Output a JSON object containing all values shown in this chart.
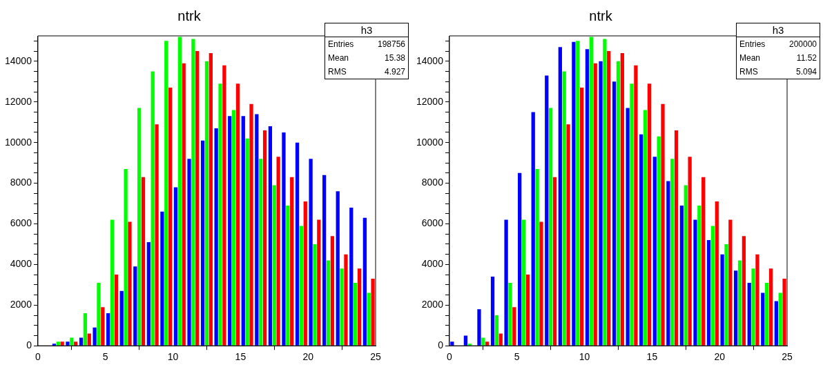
{
  "chart_data": [
    {
      "type": "histogram",
      "title": "ntrk",
      "bins": [
        0,
        1,
        2,
        3,
        4,
        5,
        6,
        7,
        8,
        9,
        10,
        11,
        12,
        13,
        14,
        15,
        16,
        17,
        18,
        19,
        20,
        21,
        22,
        23,
        24,
        25
      ],
      "series": [
        {
          "color": "#ff0000",
          "values": [
            0,
            200,
            200,
            600,
            1900,
            3500,
            6100,
            8300,
            10900,
            12700,
            13900,
            14500,
            14400,
            13800,
            12900,
            11900,
            10600,
            9300,
            8300,
            7100,
            6200,
            5400,
            4500,
            3800,
            3300
          ]
        },
        {
          "color": "#00ff00",
          "values": [
            0,
            200,
            400,
            1600,
            3100,
            6200,
            8700,
            11700,
            13500,
            15000,
            15200,
            15100,
            14000,
            12900,
            11600,
            10200,
            9200,
            7900,
            6900,
            5900,
            5000,
            4200,
            3800,
            3100,
            2600
          ]
        },
        {
          "color": "#0000ff",
          "values": [
            0,
            100,
            200,
            400,
            900,
            1600,
            2700,
            3900,
            5100,
            6600,
            7800,
            9200,
            10100,
            10700,
            11300,
            11300,
            11400,
            10800,
            10500,
            10000,
            9200,
            8400,
            7600,
            6800,
            6300
          ]
        }
      ],
      "xlim": [
        0,
        25
      ],
      "xticks": [
        0,
        5,
        10,
        15,
        20,
        25
      ],
      "ylim": [
        0,
        15250
      ],
      "yticks": [
        0,
        {
          "value": 500,
          "label": null
        },
        {
          "value": 1000,
          "label": null
        },
        {
          "value": 1500,
          "label": null
        },
        2000,
        {
          "value": 2500,
          "label": null
        },
        {
          "value": 3000,
          "label": null
        },
        {
          "value": 3500,
          "label": null
        },
        4000,
        {
          "value": 4500,
          "label": null
        },
        {
          "value": 5000,
          "label": null
        },
        {
          "value": 5500,
          "label": null
        },
        6000,
        {
          "value": 6500,
          "label": null
        },
        {
          "value": 7000,
          "label": null
        },
        {
          "value": 7500,
          "label": null
        },
        8000,
        {
          "value": 8500,
          "label": null
        },
        {
          "value": 9000,
          "label": null
        },
        {
          "value": 9500,
          "label": null
        },
        10000,
        {
          "value": 10500,
          "label": null
        },
        {
          "value": 11000,
          "label": null
        },
        {
          "value": 11500,
          "label": null
        },
        12000,
        {
          "value": 12500,
          "label": null
        },
        {
          "value": 13000,
          "label": null
        },
        {
          "value": 13500,
          "label": null
        },
        14000,
        {
          "value": 14500,
          "label": null
        },
        {
          "value": 15000,
          "label": null
        }
      ],
      "annotations": [
        "h3",
        "Entries",
        "198756",
        "Mean",
        "15.38",
        "RMS",
        "4.927"
      ],
      "grid": false,
      "legend": false
    },
    {
      "type": "histogram",
      "title": "ntrk",
      "bins": [
        0,
        1,
        2,
        3,
        4,
        5,
        6,
        7,
        8,
        9,
        10,
        11,
        12,
        13,
        14,
        15,
        16,
        17,
        18,
        19,
        20,
        21,
        22,
        23,
        24,
        25
      ],
      "series": [
        {
          "color": "#ff0000",
          "values": [
            0,
            0,
            200,
            600,
            1900,
            3500,
            6100,
            8300,
            10900,
            12700,
            13900,
            14500,
            14400,
            13800,
            12900,
            11900,
            10600,
            9300,
            8300,
            7100,
            6200,
            5400,
            4500,
            3800,
            3300
          ]
        },
        {
          "color": "#00ff00",
          "values": [
            0,
            100,
            400,
            1500,
            3100,
            6200,
            8700,
            11700,
            13500,
            15000,
            15200,
            15100,
            14000,
            12900,
            11600,
            10300,
            9200,
            7900,
            6900,
            5900,
            5000,
            4200,
            3800,
            3100,
            2600
          ]
        },
        {
          "color": "#0000ff",
          "values": [
            200,
            500,
            1800,
            3400,
            6200,
            8500,
            11500,
            13300,
            14700,
            14950,
            14600,
            14000,
            13000,
            11700,
            10400,
            9300,
            8100,
            6900,
            6200,
            5200,
            4500,
            3700,
            3100,
            2600,
            2200
          ]
        }
      ],
      "xlim": [
        0,
        25
      ],
      "xticks": [
        0,
        5,
        10,
        15,
        20,
        25
      ],
      "ylim": [
        0,
        15250
      ],
      "yticks": [
        0,
        {
          "value": 500,
          "label": null
        },
        {
          "value": 1000,
          "label": null
        },
        {
          "value": 1500,
          "label": null
        },
        2000,
        {
          "value": 2500,
          "label": null
        },
        {
          "value": 3000,
          "label": null
        },
        {
          "value": 3500,
          "label": null
        },
        4000,
        {
          "value": 4500,
          "label": null
        },
        {
          "value": 5000,
          "label": null
        },
        {
          "value": 5500,
          "label": null
        },
        6000,
        {
          "value": 6500,
          "label": null
        },
        {
          "value": 7000,
          "label": null
        },
        {
          "value": 7500,
          "label": null
        },
        8000,
        {
          "value": 8500,
          "label": null
        },
        {
          "value": 9000,
          "label": null
        },
        {
          "value": 9500,
          "label": null
        },
        10000,
        {
          "value": 10500,
          "label": null
        },
        {
          "value": 11000,
          "label": null
        },
        {
          "value": 11500,
          "label": null
        },
        12000,
        {
          "value": 12500,
          "label": null
        },
        {
          "value": 13000,
          "label": null
        },
        {
          "value": 13500,
          "label": null
        },
        14000,
        {
          "value": 14500,
          "label": null
        },
        {
          "value": 15000,
          "label": null
        }
      ],
      "annotations": [
        "h3",
        "Entries",
        "200000",
        "Mean",
        "11.52",
        "RMS",
        "5.094"
      ],
      "grid": false,
      "legend": false
    }
  ]
}
